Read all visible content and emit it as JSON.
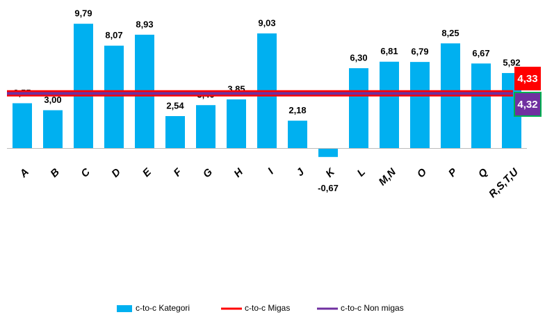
{
  "chart_data": {
    "type": "bar",
    "categories": [
      "A",
      "B",
      "C",
      "D",
      "E",
      "F",
      "G",
      "H",
      "I",
      "J",
      "K",
      "L",
      "M,N",
      "O",
      "P",
      "Q",
      "R,S,T,U"
    ],
    "series": [
      {
        "name": "c-to-c Kategori",
        "color": "#00b0f0",
        "values": [
          3.55,
          3.0,
          9.79,
          8.07,
          8.93,
          2.54,
          3.4,
          3.85,
          9.03,
          2.18,
          -0.67,
          6.3,
          6.81,
          6.79,
          8.25,
          6.67,
          5.92
        ],
        "value_labels": [
          "3,55",
          "3,00",
          "9,79",
          "8,07",
          "8,93",
          "2,54",
          "3,40",
          "3,85",
          "9,03",
          "2,18",
          "-0,67",
          "6,30",
          "6,81",
          "6,79",
          "8,25",
          "6,67",
          "5,92"
        ]
      }
    ],
    "lines": [
      {
        "name": "c-to-c Migas",
        "color": "#ff0000",
        "value": 4.33,
        "value_label": "4,33"
      },
      {
        "name": "c-to-c Non migas",
        "color": "#7030a0",
        "value": 4.32,
        "value_label": "4,32"
      }
    ],
    "ylim": [
      -1.5,
      11
    ]
  }
}
